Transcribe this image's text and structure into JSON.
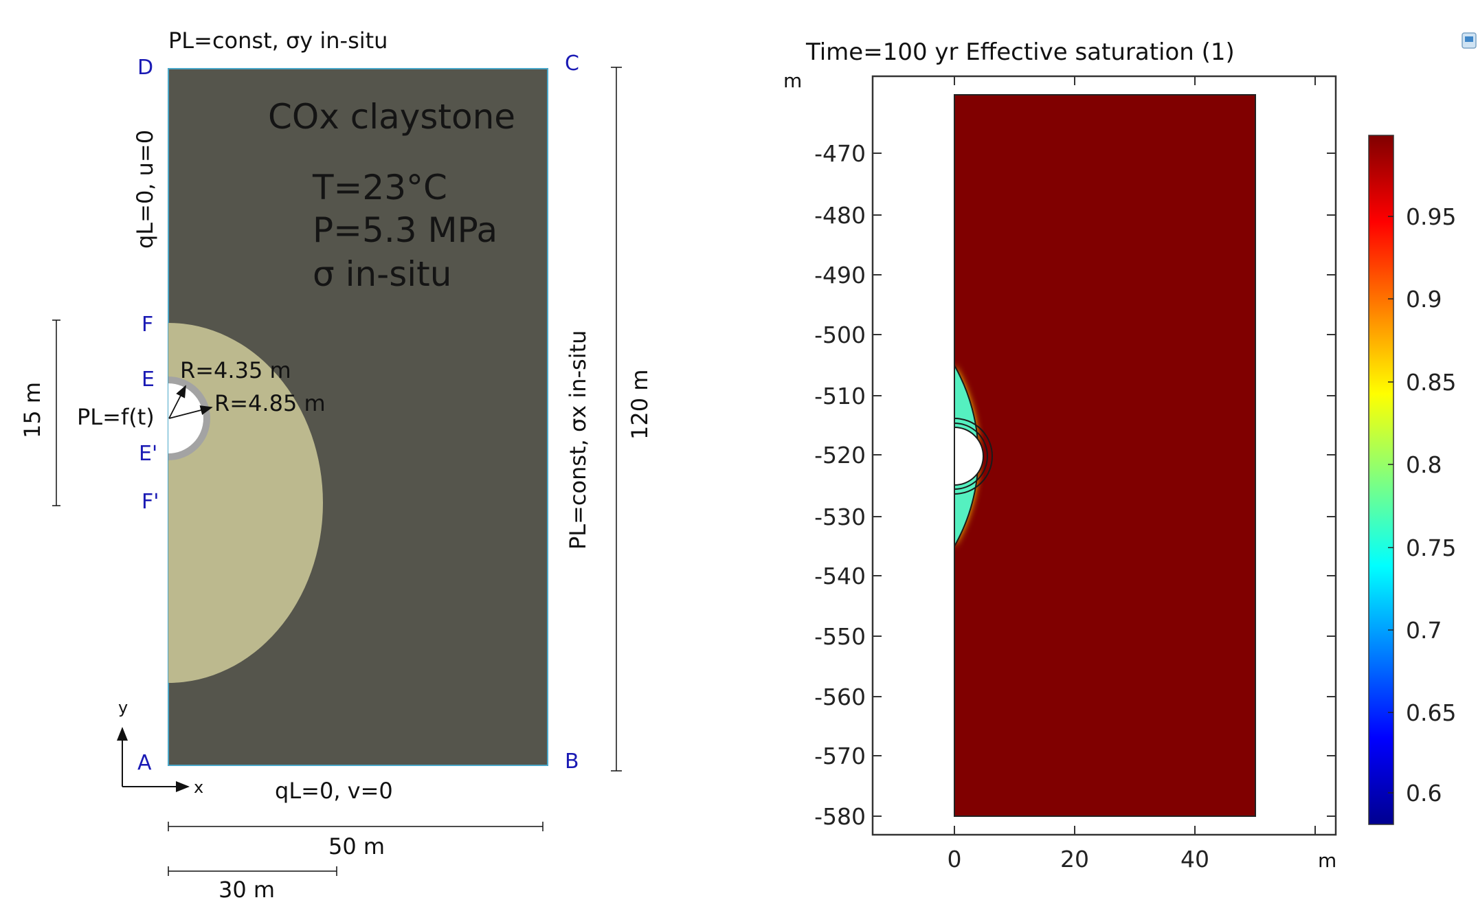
{
  "left_diagram": {
    "top_boundary": "PL=const, σy in-situ",
    "left_boundary": "qL=0, u=0",
    "right_boundary": "PL=const, σx in-situ",
    "bottom_boundary": "qL=0, v=0",
    "material": "COx claystone",
    "condition_T": "T=23°C",
    "condition_P": "P=5.3 MPa",
    "condition_sigma": "σ in-situ",
    "inner_radius": "R=4.35 m",
    "outer_radius": "R=4.85 m",
    "tunnel_pressure": "PL=f(t)",
    "corners": {
      "A": "A",
      "B": "B",
      "C": "C",
      "D": "D",
      "E": "E",
      "E_prime": "E'",
      "F": "F",
      "F_prime": "F'"
    },
    "dim_height": "120 m",
    "dim_edz": "15 m",
    "dim_width": "50 m",
    "dim_edz_extent": "30 m",
    "axis_x": "x",
    "axis_y": "y",
    "colors": {
      "claystone": "#55554c",
      "edz": "#bcb98e",
      "liner": "#a3a3a3",
      "corner_labels": "#1a1ab4"
    }
  },
  "right_plot": {
    "title": "Time=100 yr  Effective saturation (1)",
    "y_unit": "m",
    "x_unit": "m",
    "y_ticks": [
      "-470",
      "-480",
      "-490",
      "-500",
      "-510",
      "-520",
      "-530",
      "-540",
      "-550",
      "-560",
      "-570",
      "-580"
    ],
    "x_ticks": [
      "0",
      "20",
      "40"
    ],
    "colorbar_ticks": [
      "0.95",
      "0.9",
      "0.85",
      "0.8",
      "0.75",
      "0.7",
      "0.65",
      "0.6"
    ],
    "colormap": "jet",
    "colors": {
      "saturated": "#800000",
      "edz_zone": "#55f0c0",
      "front": "#ffd000"
    }
  }
}
